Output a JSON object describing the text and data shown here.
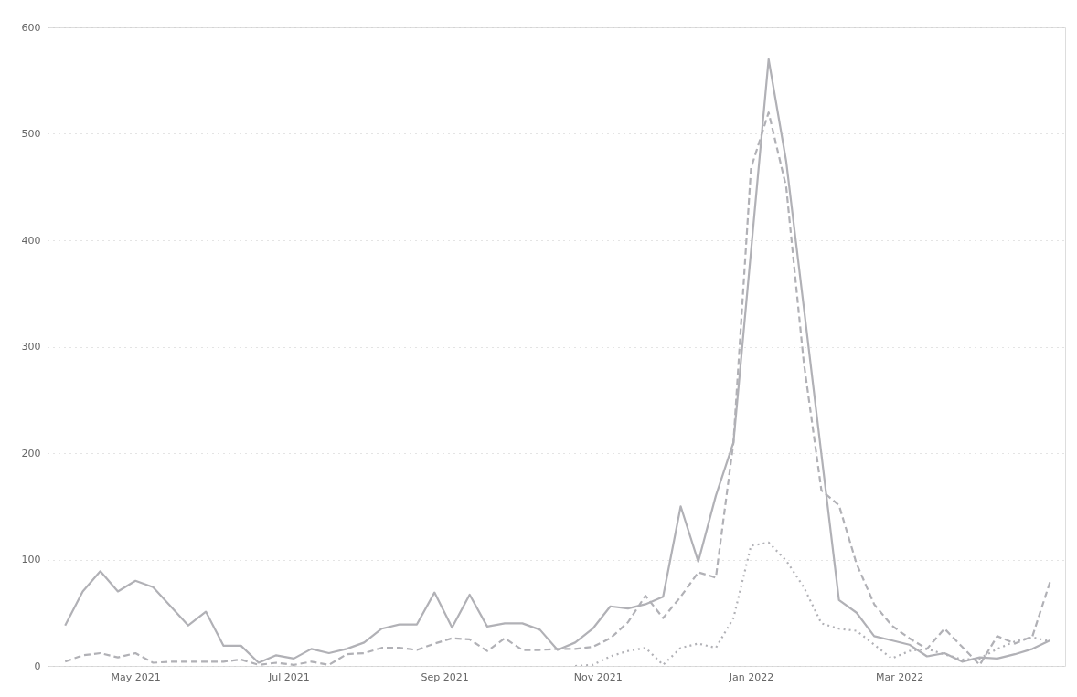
{
  "chart_data": {
    "type": "line",
    "x": [
      "2021-04-03",
      "2021-04-10",
      "2021-04-17",
      "2021-04-24",
      "2021-05-01",
      "2021-05-08",
      "2021-05-15",
      "2021-05-22",
      "2021-05-29",
      "2021-06-05",
      "2021-06-12",
      "2021-06-19",
      "2021-06-26",
      "2021-07-03",
      "2021-07-10",
      "2021-07-17",
      "2021-07-24",
      "2021-07-31",
      "2021-08-07",
      "2021-08-14",
      "2021-08-21",
      "2021-08-28",
      "2021-09-04",
      "2021-09-11",
      "2021-09-18",
      "2021-09-25",
      "2021-10-02",
      "2021-10-09",
      "2021-10-16",
      "2021-10-23",
      "2021-10-30",
      "2021-11-06",
      "2021-11-13",
      "2021-11-20",
      "2021-11-27",
      "2021-12-04",
      "2021-12-11",
      "2021-12-18",
      "2021-12-25",
      "2022-01-01",
      "2022-01-08",
      "2022-01-15",
      "2022-01-22",
      "2022-01-29",
      "2022-02-05",
      "2022-02-12",
      "2022-02-19",
      "2022-02-26",
      "2022-03-05",
      "2022-03-12",
      "2022-03-19",
      "2022-03-26",
      "2022-04-02",
      "2022-04-09",
      "2022-04-16",
      "2022-04-23",
      "2022-04-30"
    ],
    "series": [
      {
        "color": "#b1b1b6",
        "line_style": "solid",
        "values": [
          38,
          70,
          89,
          70,
          80,
          74,
          56,
          38,
          51,
          19,
          19,
          3,
          10,
          7,
          16,
          12,
          16,
          22,
          35,
          39,
          39,
          69,
          36,
          67,
          37,
          40,
          40,
          34,
          15,
          22,
          35,
          56,
          54,
          58,
          65,
          150,
          98,
          160,
          210,
          390,
          570,
          474,
          337,
          199,
          62,
          50,
          28,
          24,
          20,
          9,
          12,
          4,
          8,
          7,
          11,
          16,
          24
        ]
      },
      {
        "color": "#b1b1b6",
        "line_style": "dashed",
        "values": [
          4,
          10,
          12,
          8,
          12,
          3,
          4,
          4,
          4,
          4,
          6,
          1,
          3,
          1,
          4,
          1,
          11,
          12,
          17,
          17,
          15,
          21,
          26,
          25,
          14,
          26,
          15,
          15,
          16,
          16,
          18,
          26,
          41,
          66,
          45,
          65,
          88,
          83,
          210,
          468,
          520,
          450,
          285,
          165,
          151,
          96,
          58,
          38,
          26,
          16,
          35,
          18,
          1,
          28,
          21,
          28,
          79
        ]
      },
      {
        "color": "#b1b1b6",
        "line_style": "dotted",
        "values": [
          null,
          null,
          null,
          null,
          null,
          null,
          null,
          null,
          null,
          null,
          null,
          null,
          null,
          null,
          null,
          null,
          null,
          null,
          null,
          null,
          null,
          null,
          null,
          null,
          null,
          null,
          null,
          null,
          null,
          0,
          1,
          9,
          14,
          17,
          1,
          17,
          21,
          17,
          45,
          113,
          116,
          99,
          74,
          40,
          35,
          33,
          20,
          7,
          14,
          16,
          11,
          6,
          7,
          16,
          23,
          27,
          23
        ]
      }
    ],
    "xlim": [
      "2021-03-27",
      "2022-05-06"
    ],
    "xticks": [
      {
        "value": "2021-05-01",
        "label": "May 2021"
      },
      {
        "value": "2021-07-01",
        "label": "Jul 2021"
      },
      {
        "value": "2021-09-01",
        "label": "Sep 2021"
      },
      {
        "value": "2021-11-01",
        "label": "Nov 2021"
      },
      {
        "value": "2022-01-01",
        "label": "Jan 2022"
      },
      {
        "value": "2022-03-01",
        "label": "Mar 2022"
      }
    ],
    "ylim": [
      0,
      600
    ],
    "yticks": [
      0,
      100,
      200,
      300,
      400,
      500,
      600
    ],
    "grid": "y"
  }
}
